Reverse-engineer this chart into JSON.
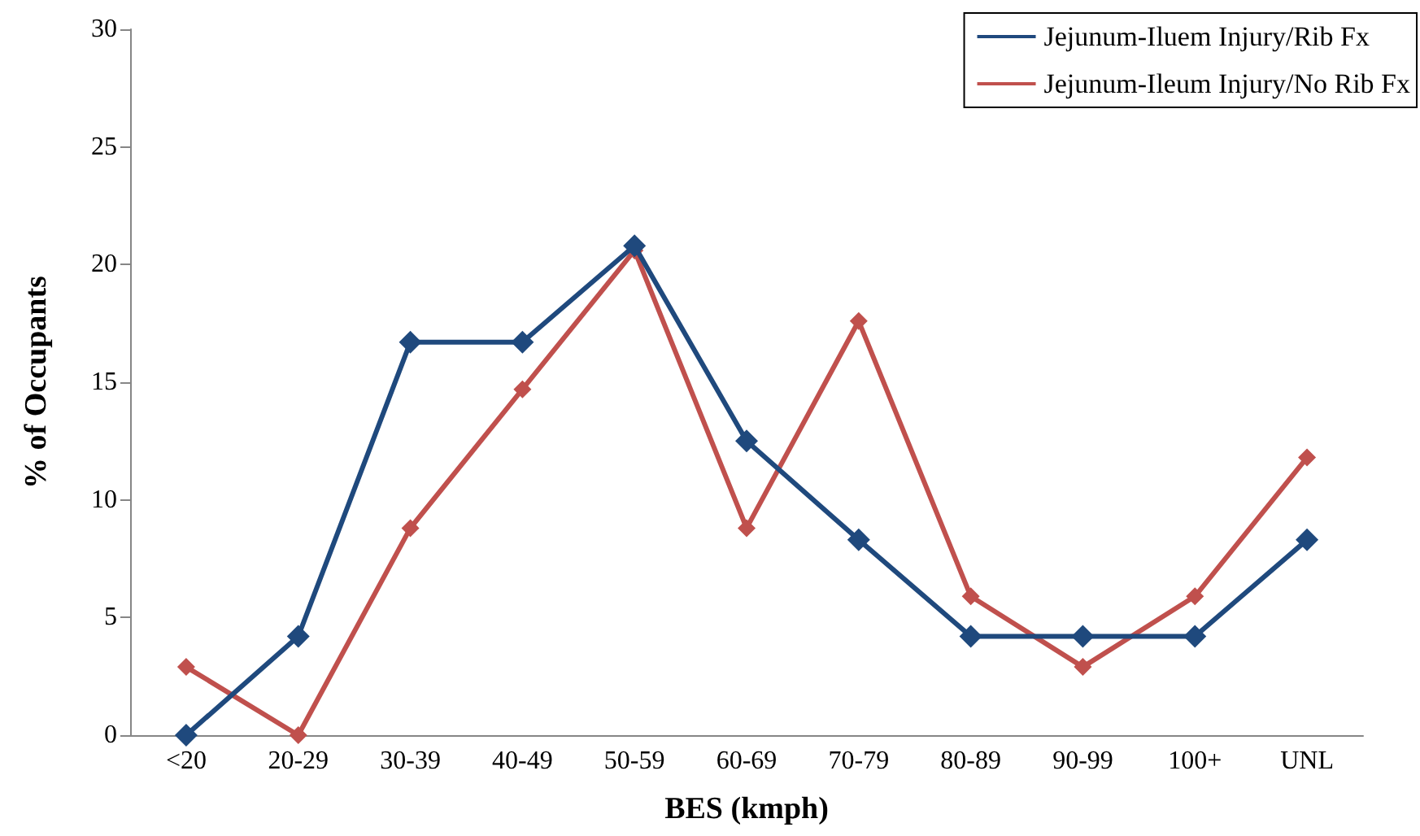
{
  "chart_data": {
    "type": "line",
    "xlabel": "BES (kmph)",
    "ylabel": "% of Occupants",
    "categories": [
      "<20",
      "20-29",
      "30-39",
      "40-49",
      "50-59",
      "60-69",
      "70-79",
      "80-89",
      "90-99",
      "100+",
      "UNL"
    ],
    "series": [
      {
        "name": "Jejunum-Iluem Injury/Rib Fx",
        "color": "#1f497d",
        "values": [
          0,
          4.2,
          16.7,
          16.7,
          20.8,
          12.5,
          8.3,
          4.2,
          4.2,
          4.2,
          8.3
        ]
      },
      {
        "name": "Jejunum-Ileum Injury/No Rib Fx",
        "color": "#c0504d",
        "values": [
          2.9,
          0,
          8.8,
          14.7,
          20.6,
          8.8,
          17.6,
          5.9,
          2.9,
          5.9,
          11.8
        ]
      }
    ],
    "ylim": [
      0,
      30
    ],
    "yticks": [
      0,
      5,
      10,
      15,
      20,
      25,
      30
    ],
    "grid": false,
    "legend": "top right",
    "marker": "diamond",
    "line_style": "solid"
  }
}
